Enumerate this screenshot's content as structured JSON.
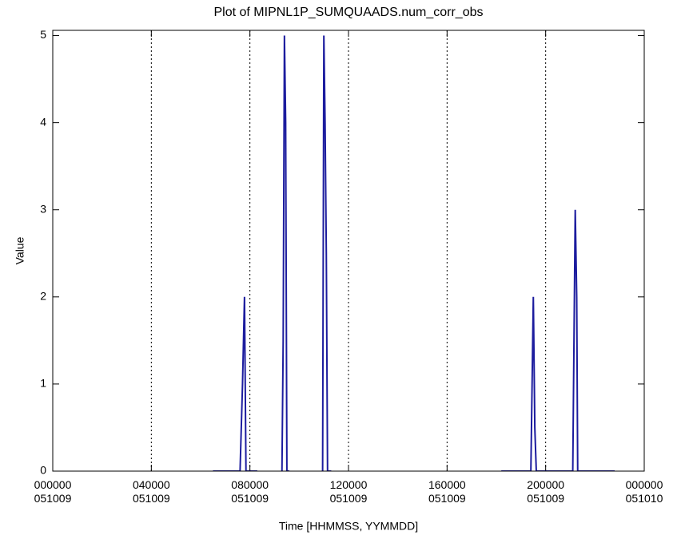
{
  "chart_data": {
    "type": "line",
    "title": "Plot of  MIPNL1P_SUMQUAADS.num_corr_obs",
    "xlabel": "Time [HHMMSS, YYMMDD]",
    "ylabel": "Value",
    "xlim": [
      0,
      24
    ],
    "ylim": [
      0,
      5.06
    ],
    "xticks": [
      {
        "value": 0,
        "label": "000000\n051009"
      },
      {
        "value": 4,
        "label": "040000\n051009"
      },
      {
        "value": 8,
        "label": "080000\n051009"
      },
      {
        "value": 12,
        "label": "120000\n051009"
      },
      {
        "value": 16,
        "label": "160000\n051009"
      },
      {
        "value": 20,
        "label": "200000\n051009"
      },
      {
        "value": 24,
        "label": "000000\n051010"
      }
    ],
    "yticks": [
      0,
      1,
      2,
      3,
      4,
      5
    ],
    "grid": true,
    "series": [
      {
        "color": "#1c1c9e",
        "x": [
          6.5,
          7.6,
          7.7,
          7.78,
          7.84,
          8.3,
          8.8,
          9.3,
          9.35,
          9.4,
          9.45,
          9.5,
          9.6,
          10.3,
          10.95,
          11.0,
          11.05,
          11.1,
          11.15,
          11.3,
          15,
          18.2,
          19.4,
          19.5,
          19.56,
          19.62,
          21.1,
          21.2,
          21.26,
          21.3,
          22.8
        ],
        "values": [
          0,
          0,
          1,
          2,
          0,
          0,
          null,
          0,
          1.5,
          5,
          4,
          0,
          0,
          null,
          0,
          5,
          4,
          2.5,
          0,
          0,
          null,
          0,
          0,
          2,
          0.5,
          0,
          0,
          3,
          2,
          0,
          0
        ]
      }
    ]
  }
}
